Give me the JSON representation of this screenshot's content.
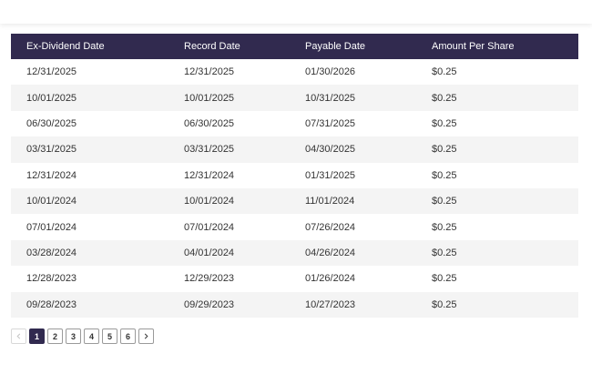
{
  "colors": {
    "header_bg": "#312a4f",
    "stripe_bg": "#f4f4f4",
    "active_page": "#312a4f"
  },
  "table": {
    "headers": [
      "Ex-Dividend Date",
      "Record Date",
      "Payable Date",
      "Amount Per Share"
    ],
    "rows": [
      [
        "12/31/2025",
        "12/31/2025",
        "01/30/2026",
        "$0.25"
      ],
      [
        "10/01/2025",
        "10/01/2025",
        "10/31/2025",
        "$0.25"
      ],
      [
        "06/30/2025",
        "06/30/2025",
        "07/31/2025",
        "$0.25"
      ],
      [
        "03/31/2025",
        "03/31/2025",
        "04/30/2025",
        "$0.25"
      ],
      [
        "12/31/2024",
        "12/31/2024",
        "01/31/2025",
        "$0.25"
      ],
      [
        "10/01/2024",
        "10/01/2024",
        "11/01/2024",
        "$0.25"
      ],
      [
        "07/01/2024",
        "07/01/2024",
        "07/26/2024",
        "$0.25"
      ],
      [
        "03/28/2024",
        "04/01/2024",
        "04/26/2024",
        "$0.25"
      ],
      [
        "12/28/2023",
        "12/29/2023",
        "01/26/2024",
        "$0.25"
      ],
      [
        "09/28/2023",
        "09/29/2023",
        "10/27/2023",
        "$0.25"
      ]
    ]
  },
  "pagination": {
    "prev_icon": "chevron-left-icon",
    "next_icon": "chevron-right-icon",
    "pages": [
      "1",
      "2",
      "3",
      "4",
      "5",
      "6"
    ],
    "current_page": "1"
  }
}
